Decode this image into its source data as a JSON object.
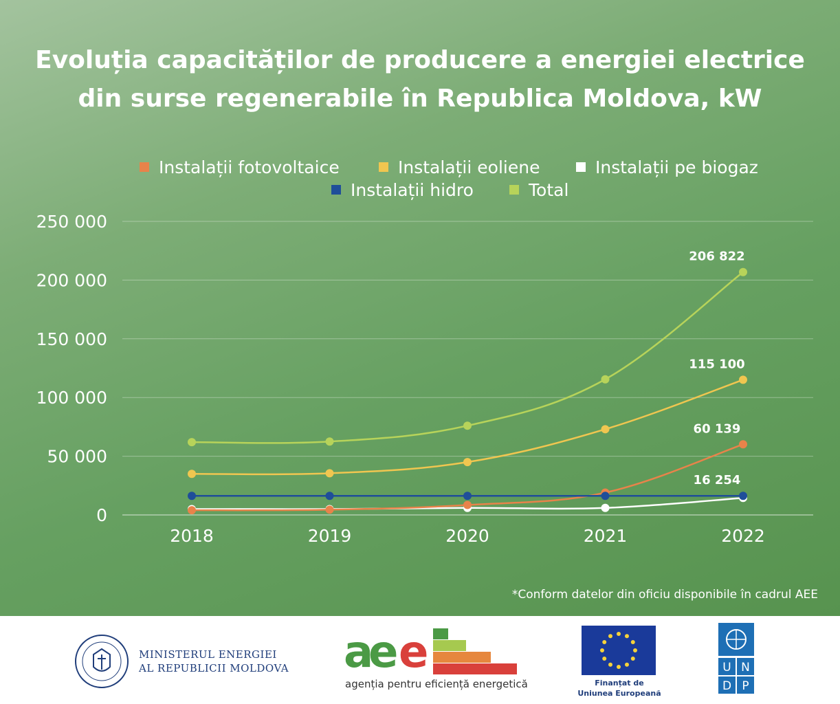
{
  "title": "Evoluția capacităților de producere a energiei electrice din surse regenerabile în Republica Moldova, kW",
  "footnote": "*Conform datelor din oficiu disponibile în cadrul AEE",
  "footer": {
    "ministry_line1": "MINISTERUL ENERGIEI",
    "ministry_line2": "AL REPUBLICII MOLDOVA",
    "aee_name": "agenția pentru eficiență energetică",
    "eu_line1": "Finanțat de",
    "eu_line2": "Uniunea Europeană",
    "undp_letters": [
      "U",
      "N",
      "D",
      "P"
    ]
  },
  "chart_data": {
    "type": "line",
    "x": [
      "2018",
      "2019",
      "2020",
      "2021",
      "2022"
    ],
    "ylim": [
      0,
      250000
    ],
    "yticks": [
      0,
      50000,
      100000,
      150000,
      200000,
      250000
    ],
    "ytick_labels": [
      "0",
      "50 000",
      "100 000",
      "150 000",
      "200 000",
      "250 000"
    ],
    "grid": true,
    "legend_position": "top",
    "series": [
      {
        "name": "Instalații fotovoltaice",
        "color": "#e8834a",
        "values": [
          4000,
          4500,
          8500,
          19000,
          60139
        ],
        "end_label": "60 139"
      },
      {
        "name": "Instalații eoliene",
        "color": "#f0c650",
        "values": [
          35000,
          35500,
          45000,
          73000,
          115100
        ],
        "end_label": "115 100"
      },
      {
        "name": "Instalații pe biogaz",
        "color": "#ffffff",
        "values": [
          5000,
          5000,
          6000,
          6000,
          14500
        ],
        "end_label": ""
      },
      {
        "name": "Instalații hidro",
        "color": "#1f4e99",
        "values": [
          16254,
          16254,
          16254,
          16254,
          16254
        ],
        "end_label": "16 254"
      },
      {
        "name": "Total",
        "color": "#b7d35a",
        "values": [
          62000,
          62500,
          76000,
          115500,
          206822
        ],
        "end_label": "206 822"
      }
    ]
  }
}
